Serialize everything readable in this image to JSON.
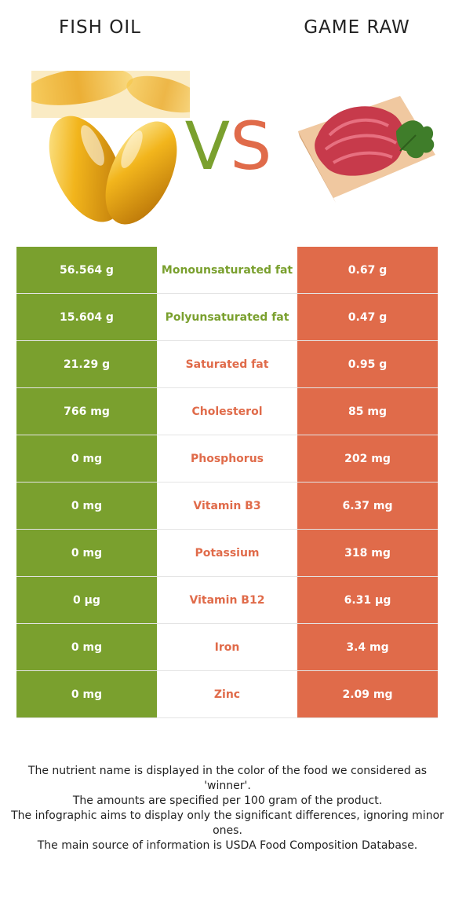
{
  "header": {
    "left_title": "FISH OIL",
    "right_title": "GAME RAW",
    "vs_v": "V",
    "vs_s": "S"
  },
  "colors": {
    "winner_left": "#7aa02e",
    "winner_right": "#e06b4a"
  },
  "rows": [
    {
      "left": "56.564 g",
      "nutrient": "Monounsaturated fat",
      "right": "0.67 g",
      "winner": "left"
    },
    {
      "left": "15.604 g",
      "nutrient": "Polyunsaturated fat",
      "right": "0.47 g",
      "winner": "left"
    },
    {
      "left": "21.29 g",
      "nutrient": "Saturated fat",
      "right": "0.95 g",
      "winner": "right"
    },
    {
      "left": "766 mg",
      "nutrient": "Cholesterol",
      "right": "85 mg",
      "winner": "right"
    },
    {
      "left": "0 mg",
      "nutrient": "Phosphorus",
      "right": "202 mg",
      "winner": "right"
    },
    {
      "left": "0 mg",
      "nutrient": "Vitamin B3",
      "right": "6.37 mg",
      "winner": "right"
    },
    {
      "left": "0 mg",
      "nutrient": "Potassium",
      "right": "318 mg",
      "winner": "right"
    },
    {
      "left": "0 µg",
      "nutrient": "Vitamin B12",
      "right": "6.31 µg",
      "winner": "right"
    },
    {
      "left": "0 mg",
      "nutrient": "Iron",
      "right": "3.4 mg",
      "winner": "right"
    },
    {
      "left": "0 mg",
      "nutrient": "Zinc",
      "right": "2.09 mg",
      "winner": "right"
    }
  ],
  "footer": {
    "line1": "The nutrient name is displayed in the color of the food we considered as 'winner'.",
    "line2": "The amounts are specified per 100 gram of the product.",
    "line3": "The infographic aims to display only the significant differences, ignoring minor ones.",
    "line4": "The main source of information is USDA Food Composition Database."
  }
}
